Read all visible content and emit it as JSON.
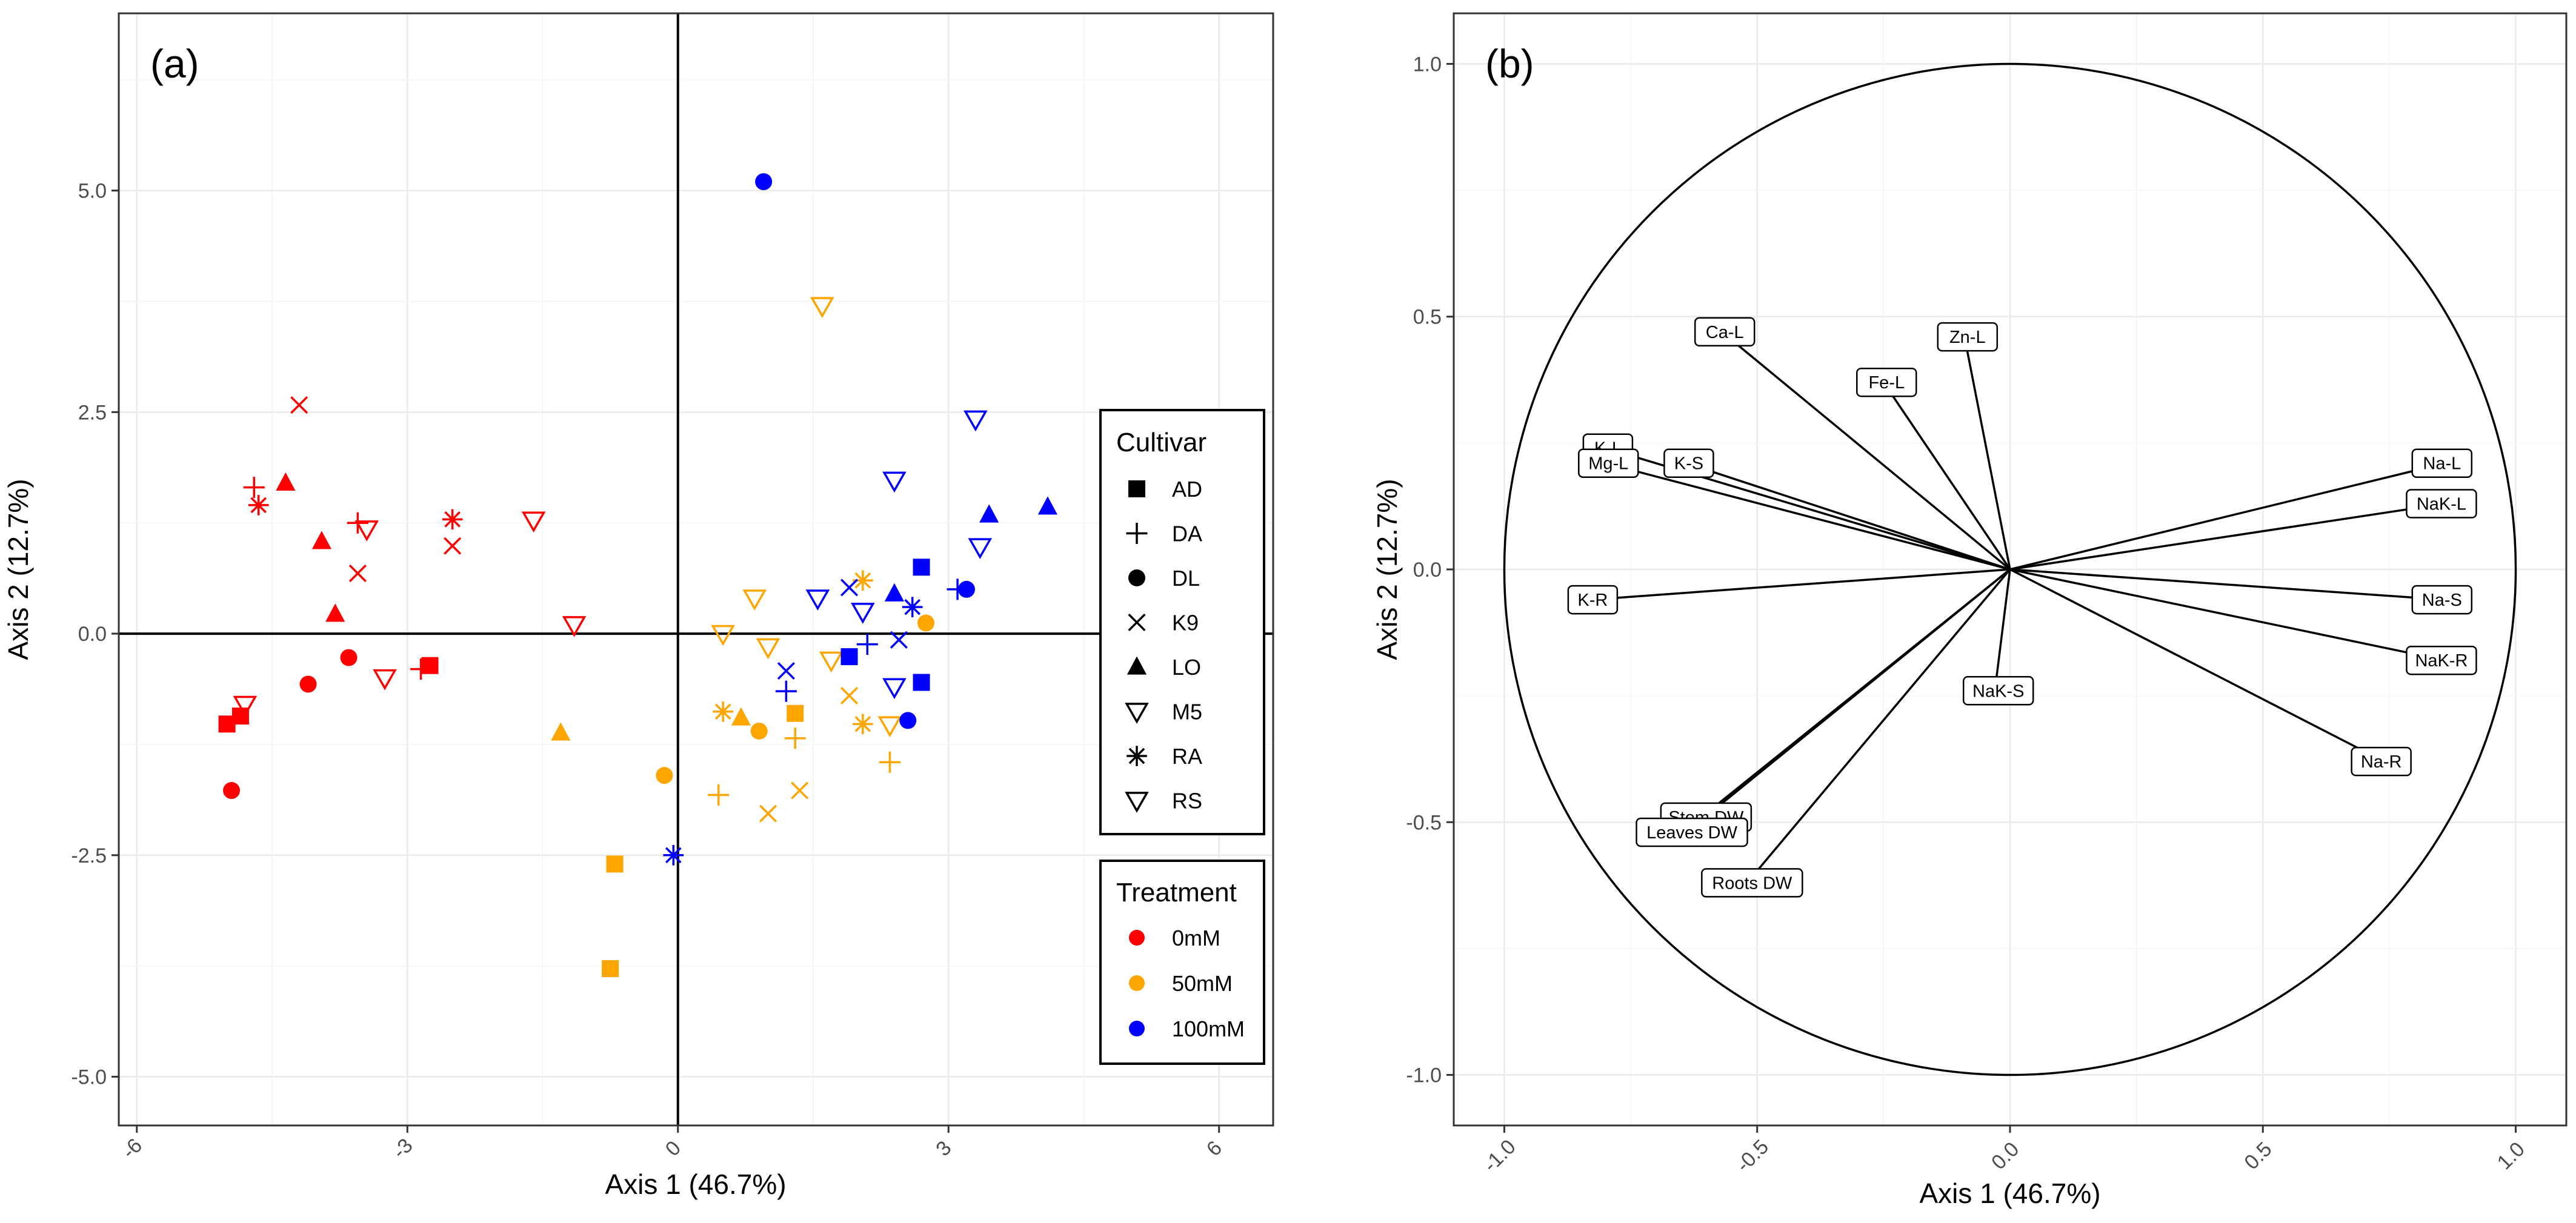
{
  "colors": {
    "0mM": "#ff0000",
    "50mM": "#ffa500",
    "100mM": "#0000ff",
    "grid": "#ebebeb",
    "frame": "#333333"
  },
  "chart_data": [
    {
      "type": "scatter",
      "panel_label": "(a)",
      "xlabel": "Axis 1 (46.7%)",
      "ylabel": "Axis 2 (12.7%)",
      "xlim": [
        -6.2,
        6.6
      ],
      "ylim": [
        -5.55,
        7.0
      ],
      "x_ticks": [
        -6,
        -3,
        0,
        3,
        6
      ],
      "x_tick_labels": [
        "-6",
        "-3",
        "0",
        "3",
        "6"
      ],
      "y_ticks": [
        -5,
        -2.5,
        0,
        2.5,
        5
      ],
      "y_tick_labels": [
        "-5.0",
        "-2.5",
        "0.0",
        "2.5",
        "5.0"
      ],
      "grid": true,
      "legend": {
        "position": "right",
        "cultivar_title": "Cultivar",
        "cultivar": [
          {
            "label": "AD",
            "shape": "square"
          },
          {
            "label": "DA",
            "shape": "plus"
          },
          {
            "label": "DL",
            "shape": "circle"
          },
          {
            "label": "K9",
            "shape": "cross"
          },
          {
            "label": "LO",
            "shape": "triangle"
          },
          {
            "label": "M5",
            "shape": "tridown"
          },
          {
            "label": "RA",
            "shape": "asterisk"
          },
          {
            "label": "RS",
            "shape": "tridown"
          }
        ],
        "treatment_title": "Treatment",
        "treatment": [
          {
            "label": "0mM",
            "color": "#ff0000"
          },
          {
            "label": "50mM",
            "color": "#ffa500"
          },
          {
            "label": "100mM",
            "color": "#0000ff"
          }
        ]
      },
      "points": [
        {
          "x": -5.0,
          "y": -1.02,
          "shape": "square",
          "t": "0mM"
        },
        {
          "x": -4.85,
          "y": -0.93,
          "shape": "square",
          "t": "0mM"
        },
        {
          "x": -2.75,
          "y": -0.36,
          "shape": "square",
          "t": "0mM"
        },
        {
          "x": -4.7,
          "y": 1.65,
          "shape": "plus",
          "t": "0mM"
        },
        {
          "x": -3.55,
          "y": 1.25,
          "shape": "plus",
          "t": "0mM"
        },
        {
          "x": -2.85,
          "y": -0.4,
          "shape": "plus",
          "t": "0mM"
        },
        {
          "x": -4.95,
          "y": -1.77,
          "shape": "circle",
          "t": "0mM"
        },
        {
          "x": -4.1,
          "y": -0.57,
          "shape": "circle",
          "t": "0mM"
        },
        {
          "x": -3.65,
          "y": -0.27,
          "shape": "circle",
          "t": "0mM"
        },
        {
          "x": -4.2,
          "y": 2.58,
          "shape": "cross",
          "t": "0mM"
        },
        {
          "x": -3.55,
          "y": 0.68,
          "shape": "cross",
          "t": "0mM"
        },
        {
          "x": -2.5,
          "y": 0.99,
          "shape": "cross",
          "t": "0mM"
        },
        {
          "x": -4.35,
          "y": 1.7,
          "shape": "triangle",
          "t": "0mM"
        },
        {
          "x": -3.95,
          "y": 1.04,
          "shape": "triangle",
          "t": "0mM"
        },
        {
          "x": -3.8,
          "y": 0.22,
          "shape": "triangle",
          "t": "0mM"
        },
        {
          "x": -4.8,
          "y": -0.8,
          "shape": "tridown",
          "t": "0mM"
        },
        {
          "x": -3.45,
          "y": 1.18,
          "shape": "tridown",
          "t": "0mM"
        },
        {
          "x": -3.25,
          "y": -0.5,
          "shape": "tridown",
          "t": "0mM"
        },
        {
          "x": -1.6,
          "y": 1.28,
          "shape": "tridown",
          "t": "0mM"
        },
        {
          "x": -1.15,
          "y": 0.1,
          "shape": "tridown",
          "t": "0mM"
        },
        {
          "x": -4.65,
          "y": 1.45,
          "shape": "asterisk",
          "t": "0mM"
        },
        {
          "x": -2.5,
          "y": 1.29,
          "shape": "asterisk",
          "t": "0mM"
        },
        {
          "x": -0.7,
          "y": -2.6,
          "shape": "square",
          "t": "50mM"
        },
        {
          "x": -0.75,
          "y": -3.78,
          "shape": "square",
          "t": "50mM"
        },
        {
          "x": 1.3,
          "y": -0.9,
          "shape": "square",
          "t": "50mM"
        },
        {
          "x": 0.45,
          "y": -1.82,
          "shape": "plus",
          "t": "50mM"
        },
        {
          "x": 1.3,
          "y": -1.18,
          "shape": "plus",
          "t": "50mM"
        },
        {
          "x": 2.35,
          "y": -1.45,
          "shape": "plus",
          "t": "50mM"
        },
        {
          "x": -0.15,
          "y": -1.6,
          "shape": "circle",
          "t": "50mM"
        },
        {
          "x": 0.9,
          "y": -1.1,
          "shape": "circle",
          "t": "50mM"
        },
        {
          "x": 2.75,
          "y": 0.12,
          "shape": "circle",
          "t": "50mM"
        },
        {
          "x": 1.0,
          "y": -2.03,
          "shape": "cross",
          "t": "50mM"
        },
        {
          "x": 1.35,
          "y": -1.77,
          "shape": "cross",
          "t": "50mM"
        },
        {
          "x": 1.9,
          "y": -0.7,
          "shape": "cross",
          "t": "50mM"
        },
        {
          "x": -1.3,
          "y": -1.12,
          "shape": "triangle",
          "t": "50mM"
        },
        {
          "x": 0.7,
          "y": -0.95,
          "shape": "triangle",
          "t": "50mM"
        },
        {
          "x": 0.5,
          "y": 0.0,
          "shape": "tridown",
          "t": "50mM"
        },
        {
          "x": 0.85,
          "y": 0.4,
          "shape": "tridown",
          "t": "50mM"
        },
        {
          "x": 1.0,
          "y": -0.15,
          "shape": "tridown",
          "t": "50mM"
        },
        {
          "x": 1.6,
          "y": 3.7,
          "shape": "tridown",
          "t": "50mM"
        },
        {
          "x": 1.7,
          "y": -0.3,
          "shape": "tridown",
          "t": "50mM"
        },
        {
          "x": 2.35,
          "y": -1.03,
          "shape": "tridown",
          "t": "50mM"
        },
        {
          "x": 0.5,
          "y": -0.88,
          "shape": "asterisk",
          "t": "50mM"
        },
        {
          "x": 2.05,
          "y": 0.6,
          "shape": "asterisk",
          "t": "50mM"
        },
        {
          "x": 2.05,
          "y": -1.02,
          "shape": "asterisk",
          "t": "50mM"
        },
        {
          "x": 1.9,
          "y": -0.26,
          "shape": "square",
          "t": "100mM"
        },
        {
          "x": 2.7,
          "y": 0.75,
          "shape": "square",
          "t": "100mM"
        },
        {
          "x": 2.7,
          "y": -0.55,
          "shape": "square",
          "t": "100mM"
        },
        {
          "x": 1.2,
          "y": -0.65,
          "shape": "plus",
          "t": "100mM"
        },
        {
          "x": 2.1,
          "y": -0.12,
          "shape": "plus",
          "t": "100mM"
        },
        {
          "x": 3.1,
          "y": 0.5,
          "shape": "plus",
          "t": "100mM"
        },
        {
          "x": 0.95,
          "y": 5.1,
          "shape": "circle",
          "t": "100mM"
        },
        {
          "x": 3.2,
          "y": 0.5,
          "shape": "circle",
          "t": "100mM"
        },
        {
          "x": 2.55,
          "y": -0.98,
          "shape": "circle",
          "t": "100mM"
        },
        {
          "x": 1.2,
          "y": -0.42,
          "shape": "cross",
          "t": "100mM"
        },
        {
          "x": 1.9,
          "y": 0.52,
          "shape": "cross",
          "t": "100mM"
        },
        {
          "x": 2.45,
          "y": -0.07,
          "shape": "cross",
          "t": "100mM"
        },
        {
          "x": 2.4,
          "y": 0.45,
          "shape": "triangle",
          "t": "100mM"
        },
        {
          "x": 3.45,
          "y": 1.34,
          "shape": "triangle",
          "t": "100mM"
        },
        {
          "x": 4.1,
          "y": 1.43,
          "shape": "triangle",
          "t": "100mM"
        },
        {
          "x": 1.55,
          "y": 0.4,
          "shape": "tridown",
          "t": "100mM"
        },
        {
          "x": 2.05,
          "y": 0.25,
          "shape": "tridown",
          "t": "100mM"
        },
        {
          "x": 2.4,
          "y": -0.6,
          "shape": "tridown",
          "t": "100mM"
        },
        {
          "x": 2.4,
          "y": 1.73,
          "shape": "tridown",
          "t": "100mM"
        },
        {
          "x": 3.3,
          "y": 2.42,
          "shape": "tridown",
          "t": "100mM"
        },
        {
          "x": 3.35,
          "y": 0.98,
          "shape": "tridown",
          "t": "100mM"
        },
        {
          "x": -0.05,
          "y": -2.5,
          "shape": "asterisk",
          "t": "100mM"
        },
        {
          "x": 2.6,
          "y": 0.3,
          "shape": "asterisk",
          "t": "100mM"
        }
      ]
    },
    {
      "type": "correlation-circle",
      "panel_label": "(b)",
      "xlabel": "Axis 1 (46.7%)",
      "ylabel": "Axis 2 (12.7%)",
      "xlim": [
        -1.1,
        1.1
      ],
      "ylim": [
        -1.1,
        1.1
      ],
      "x_ticks": [
        -1.0,
        -0.5,
        0.0,
        0.5,
        1.0
      ],
      "x_tick_labels": [
        "-1.0",
        "-0.5",
        "0.0",
        "0.5",
        "1.0"
      ],
      "y_ticks": [
        -1.0,
        -0.5,
        0.0,
        0.5,
        1.0
      ],
      "y_tick_labels": [
        "-1.0",
        "-0.5",
        "0.0",
        "0.5",
        "1.0"
      ],
      "grid": true,
      "circle_radius": 1.0,
      "vectors": [
        {
          "label": "Ca-L",
          "x": -0.57,
          "y": 0.47
        },
        {
          "label": "Zn-L",
          "x": -0.09,
          "y": 0.46
        },
        {
          "label": "Fe-L",
          "x": -0.25,
          "y": 0.37
        },
        {
          "label": "K-L",
          "x": -0.8,
          "y": 0.24
        },
        {
          "label": "K-S",
          "x": -0.64,
          "y": 0.21
        },
        {
          "label": "Mg-L",
          "x": -0.8,
          "y": 0.21
        },
        {
          "label": "K-R",
          "x": -0.83,
          "y": -0.06
        },
        {
          "label": "Na-L",
          "x": 0.86,
          "y": 0.21
        },
        {
          "label": "NaK-L",
          "x": 0.86,
          "y": 0.13
        },
        {
          "label": "Na-S",
          "x": 0.86,
          "y": -0.06
        },
        {
          "label": "NaK-R",
          "x": 0.86,
          "y": -0.18
        },
        {
          "label": "Na-R",
          "x": 0.74,
          "y": -0.38
        },
        {
          "label": "NaK-S",
          "x": -0.03,
          "y": -0.24
        },
        {
          "label": "Stem DW",
          "x": -0.61,
          "y": -0.49
        },
        {
          "label": "Leaves DW",
          "x": -0.64,
          "y": -0.52
        },
        {
          "label": "Roots DW",
          "x": -0.52,
          "y": -0.62
        }
      ]
    }
  ]
}
